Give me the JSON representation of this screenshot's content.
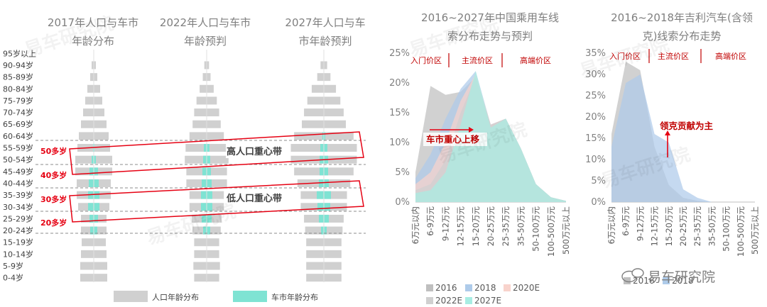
{
  "pyramid": {
    "titles": [
      [
        "2017年人口与车市",
        "年龄分布"
      ],
      [
        "2022年人口与车市",
        "年龄预判"
      ],
      [
        "2027年人口与车",
        "市年龄预判"
      ]
    ],
    "age_groups": [
      "95岁以上",
      "90-94岁",
      "85-89岁",
      "80-84岁",
      "75-79岁",
      "70-74岁",
      "65-69岁",
      "60-64岁",
      "55-59岁",
      "50-54岁",
      "45-49岁",
      "40-44岁",
      "35-39岁",
      "30-34岁",
      "25-29岁",
      "20-24岁",
      "15-19岁",
      "10-14岁",
      "5-9岁",
      "0-4岁"
    ],
    "legend": {
      "population": "人口年龄分布",
      "car_market": "车市年龄分布"
    },
    "age_markers": [
      "50多岁",
      "40多岁",
      "30多岁",
      "20多岁"
    ],
    "band_labels": {
      "high": "高人口重心带",
      "low": "低人口重心带"
    },
    "colors": {
      "population": "#d0d0d0",
      "car_market": "#7fe3d3",
      "annotation": "#e60012"
    }
  },
  "chart_data": [
    {
      "type": "area",
      "title": [
        "2016~2027年中国乘用车线",
        "索分布走势与预判"
      ],
      "categories": [
        "6万元以内",
        "6-9万元",
        "9-12万元",
        "12-15万元",
        "15-20万元",
        "20-25万元",
        "25-35万元",
        "35-50万元",
        "50-100万元",
        "100-500万元",
        "500万元以上"
      ],
      "ylim": [
        0,
        25
      ],
      "yticks": [
        "0%",
        "5%",
        "10%",
        "15%",
        "20%",
        "25%"
      ],
      "segments": [
        "入门价区",
        "主流价区",
        "高端价区"
      ],
      "annotation": "车市重心上移",
      "series": [
        {
          "name": "2016",
          "color": "#bfbfbf",
          "values": [
            5,
            19.5,
            18,
            18.5,
            21,
            13,
            14,
            9,
            3,
            0.8,
            0.2
          ]
        },
        {
          "name": "2018",
          "color": "#aecbea",
          "values": [
            4,
            8,
            14,
            19,
            22,
            13,
            14,
            9,
            3,
            0.8,
            0.2
          ]
        },
        {
          "name": "2020E",
          "color": "#f8d3cc",
          "values": [
            3,
            5,
            10,
            17,
            21.5,
            13,
            14,
            9,
            3,
            0.8,
            0.2
          ]
        },
        {
          "name": "2022E",
          "color": "#d0d0d0",
          "values": [
            2,
            3,
            7,
            15,
            21,
            13,
            14,
            9,
            3,
            0.8,
            0.2
          ]
        },
        {
          "name": "2027E",
          "color": "#a8ede3",
          "values": [
            1.5,
            2,
            5,
            13,
            22,
            12.5,
            14,
            9,
            3,
            0.8,
            0.2
          ]
        }
      ]
    },
    {
      "type": "area",
      "title": [
        "2016~2018年吉利汽车(含领",
        "克)线索分布走势"
      ],
      "categories": [
        "6万元以内",
        "6-9万元",
        "9-12万元",
        "12-15万元",
        "15-20万元",
        "20-25万元",
        "25-35万元",
        "35-50万元",
        "50-100万元",
        "100-500万元",
        "500万元以上"
      ],
      "ylim": [
        0,
        35
      ],
      "yticks": [
        "0%",
        "5%",
        "10%",
        "15%",
        "20%",
        "25%",
        "30%",
        "35%"
      ],
      "segments": [
        "入门价区",
        "主流价区",
        "高端价区"
      ],
      "annotation": "领克贡献为主",
      "series": [
        {
          "name": "2016",
          "color": "#bfbfbf",
          "values": [
            16,
            33,
            31,
            13,
            4,
            1,
            0.3,
            0,
            0,
            0,
            0
          ]
        },
        {
          "name": "2018",
          "color": "#aecbea",
          "values": [
            13,
            28,
            30,
            16,
            14,
            3,
            1,
            0,
            0,
            0,
            0
          ]
        }
      ]
    }
  ],
  "watermark": {
    "brand": "易车研究院",
    "logo_icon": "chat-bubble-icon"
  }
}
